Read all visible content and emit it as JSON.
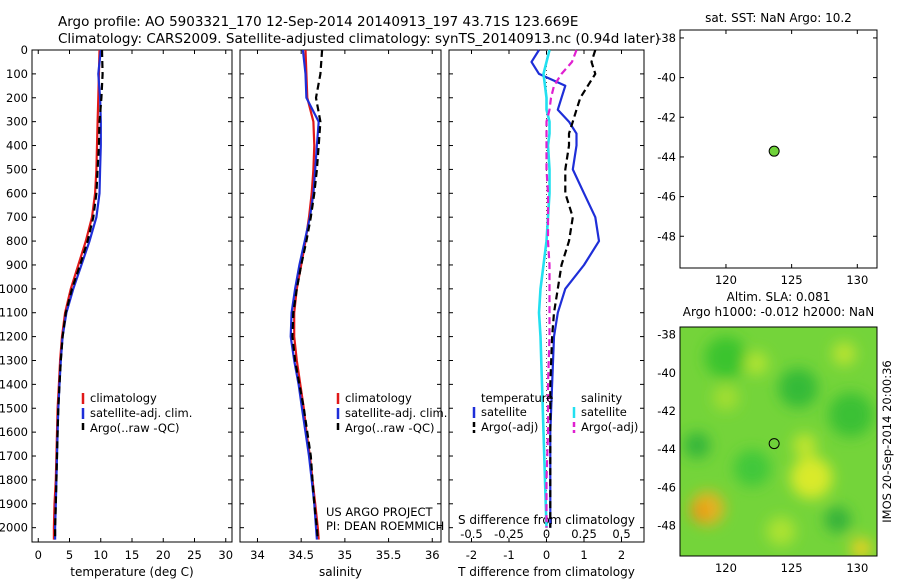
{
  "header": {
    "line1": "Argo profile: AO 5903321_170 12-Sep-2014 20140913_197 43.71S 123.669E",
    "line2": "Climatology: CARS2009. Satellite-adjusted climatology: synTS_20140913.nc (0.94d later)"
  },
  "colors": {
    "climatology": "#e01818",
    "satellite": "#1e2ed8",
    "argo": "#000000",
    "salinity_satellite": "#22e0f0",
    "salinity_argo": "#e020d0",
    "marker": "#6fd23a"
  },
  "chart_data": [
    {
      "type": "line",
      "name": "temperature-profile",
      "xlabel": "temperature (deg C)",
      "xlim": [
        -1,
        31
      ],
      "xticks": [
        "0",
        "5",
        "10",
        "15",
        "20",
        "25",
        "30"
      ],
      "ylim": [
        2060,
        0
      ],
      "yticks": [
        "0",
        "100",
        "200",
        "300",
        "400",
        "500",
        "600",
        "700",
        "800",
        "900",
        "1000",
        "1100",
        "1200",
        "1300",
        "1400",
        "1500",
        "1600",
        "1700",
        "1800",
        "1900",
        "2000"
      ],
      "legend": [
        "climatology",
        "satellite-adj. clim.",
        "Argo(..raw -QC)"
      ],
      "legend_position": "lower-middle",
      "depth": [
        0,
        100,
        200,
        300,
        400,
        500,
        600,
        700,
        800,
        900,
        1000,
        1100,
        1200,
        1300,
        1400,
        1500,
        1600,
        1700,
        1800,
        1900,
        2000,
        2050
      ],
      "series": [
        {
          "name": "climatology",
          "values": [
            9.8,
            9.7,
            9.6,
            9.5,
            9.4,
            9.3,
            9.1,
            8.6,
            7.6,
            6.4,
            5.2,
            4.3,
            3.8,
            3.5,
            3.3,
            3.1,
            3.0,
            2.9,
            2.8,
            2.6,
            2.5,
            2.5
          ]
        },
        {
          "name": "satellite-adj. clim.",
          "values": [
            10.0,
            9.6,
            9.9,
            10.0,
            10.0,
            9.9,
            9.8,
            9.3,
            8.2,
            6.9,
            5.6,
            4.5,
            3.9,
            3.6,
            3.4,
            3.2,
            3.1,
            3.0,
            2.9,
            2.8,
            2.7,
            2.7
          ]
        },
        {
          "name": "Argo(..raw -QC)",
          "values": [
            10.2,
            10.3,
            10.1,
            9.8,
            9.7,
            9.5,
            9.3,
            8.8,
            7.9,
            6.7,
            5.4,
            4.4,
            3.9,
            3.6,
            3.4,
            3.2,
            3.1,
            3.0,
            2.9,
            2.8,
            2.7,
            2.7
          ]
        }
      ]
    },
    {
      "type": "line",
      "name": "salinity-profile",
      "xlabel": "salinity",
      "xlim": [
        33.8,
        36.1
      ],
      "xticks": [
        "34",
        "34.5",
        "35",
        "35.5",
        "36"
      ],
      "legend": [
        "climatology",
        "satellite-adj. clim.",
        "Argo(..raw -QC)"
      ],
      "legend_position": "lower-right",
      "annotation": [
        "US ARGO PROJECT",
        "PI: DEAN ROEMMICH"
      ],
      "depth": [
        0,
        100,
        200,
        300,
        400,
        500,
        600,
        700,
        800,
        900,
        1000,
        1100,
        1200,
        1300,
        1400,
        1500,
        1600,
        1700,
        1800,
        1900,
        2000,
        2050
      ],
      "series": [
        {
          "name": "climatology",
          "values": [
            34.55,
            34.56,
            34.57,
            34.64,
            34.65,
            34.64,
            34.62,
            34.59,
            34.55,
            34.5,
            34.45,
            34.42,
            34.42,
            34.45,
            34.49,
            34.53,
            34.56,
            34.6,
            34.63,
            34.66,
            34.69,
            34.7
          ]
        },
        {
          "name": "satellite-adj. clim.",
          "values": [
            34.52,
            34.55,
            34.56,
            34.7,
            34.68,
            34.66,
            34.64,
            34.6,
            34.54,
            34.48,
            34.43,
            34.39,
            34.38,
            34.42,
            34.47,
            34.51,
            34.55,
            34.59,
            34.62,
            34.65,
            34.67,
            34.68
          ]
        },
        {
          "name": "Argo(..raw -QC)",
          "values": [
            34.74,
            34.72,
            34.67,
            34.72,
            34.7,
            34.68,
            34.65,
            34.61,
            34.56,
            34.5,
            34.45,
            34.41,
            34.4,
            34.43,
            34.48,
            34.53,
            34.57,
            34.61,
            34.63,
            34.65,
            34.68,
            34.69
          ]
        }
      ]
    },
    {
      "type": "line",
      "name": "difference-profile",
      "xlabel": "T difference from climatology",
      "top_axis_label": "S difference from climatology",
      "xlim": [
        -2.6,
        2.6
      ],
      "xticks": [
        "-2",
        "-1",
        "0",
        "1",
        "2"
      ],
      "top_ticks": [
        "-0.5",
        "-0.25",
        "0",
        "0.25",
        "0.5"
      ],
      "legend_titles": [
        "temperature",
        "salinity"
      ],
      "legend": [
        "satellite",
        "Argo(-adj)",
        "satellite",
        "Argo(-adj)"
      ],
      "legend_position": "lower-middle",
      "depth": [
        0,
        50,
        100,
        150,
        200,
        250,
        300,
        350,
        400,
        500,
        600,
        700,
        800,
        900,
        1000,
        1100,
        1200,
        1400,
        1600,
        1800,
        2000
      ],
      "series": [
        {
          "name": "temperature satellite",
          "values": [
            -0.2,
            -0.4,
            -0.2,
            0.5,
            0.4,
            0.3,
            0.6,
            0.8,
            0.8,
            0.7,
            1.0,
            1.3,
            1.4,
            1.0,
            0.5,
            0.3,
            0.2,
            0.15,
            0.1,
            0.1,
            0.1
          ]
        },
        {
          "name": "temperature Argo(-adj)",
          "values": [
            1.3,
            1.2,
            1.3,
            1.1,
            0.9,
            0.8,
            0.7,
            0.6,
            0.6,
            0.5,
            0.5,
            0.7,
            0.6,
            0.4,
            0.3,
            0.2,
            0.15,
            0.1,
            0.1,
            0.1,
            0.1
          ]
        },
        {
          "name": "salinity satellite",
          "values": [
            0.02,
            0.0,
            -0.02,
            -0.01,
            0.0,
            0.0,
            0.02,
            0.02,
            0.01,
            0.02,
            0.02,
            0.01,
            0.0,
            -0.02,
            -0.04,
            -0.05,
            -0.04,
            -0.03,
            -0.02,
            -0.01,
            0.0
          ]
        },
        {
          "name": "salinity Argo(-adj)",
          "values": [
            0.2,
            0.17,
            0.1,
            0.05,
            0.03,
            0.02,
            0.0,
            0.0,
            0.0,
            0.0,
            0.01,
            0.01,
            0.01,
            0.02,
            0.02,
            0.02,
            0.02,
            0.01,
            0.01,
            0.0,
            0.0
          ]
        }
      ]
    },
    {
      "type": "scatter",
      "name": "sst-map",
      "title": "sat. SST: NaN Argo: 10.2",
      "xlim": [
        116.5,
        131.5
      ],
      "ylim": [
        -49.6,
        -37.6
      ],
      "xticks": [
        "120",
        "125",
        "130"
      ],
      "yticks": [
        "-38",
        "-40",
        "-42",
        "-44",
        "-46",
        "-48"
      ],
      "points": [
        {
          "x": 123.669,
          "y": -43.71
        }
      ]
    },
    {
      "type": "heatmap",
      "name": "sla-map",
      "title": [
        "Altim. SLA: 0.081",
        "Argo h1000: -0.012 h2000: NaN"
      ],
      "xlim": [
        116.5,
        131.5
      ],
      "ylim": [
        -49.6,
        -37.6
      ],
      "xticks": [
        "120",
        "125",
        "130"
      ],
      "yticks": [
        "-38",
        "-40",
        "-42",
        "-44",
        "-46",
        "-48"
      ],
      "side_label": "IMOS 20-Sep-2014 20:00:36",
      "points": [
        {
          "x": 123.669,
          "y": -43.71
        }
      ],
      "blobs": [
        {
          "x": 120.0,
          "y": -39.2,
          "r": 1.6,
          "c": "#33c22e"
        },
        {
          "x": 125.5,
          "y": -40.8,
          "r": 1.5,
          "c": "#2eb839"
        },
        {
          "x": 129.5,
          "y": -42.2,
          "r": 1.7,
          "c": "#35bf35"
        },
        {
          "x": 122.0,
          "y": -45.0,
          "r": 1.4,
          "c": "#3ac63b"
        },
        {
          "x": 118.6,
          "y": -47.1,
          "r": 1.3,
          "c": "#f0b020"
        },
        {
          "x": 118.0,
          "y": -47.3,
          "r": 0.7,
          "c": "#ee9418"
        },
        {
          "x": 126.5,
          "y": -45.5,
          "r": 1.6,
          "c": "#e4ec28"
        },
        {
          "x": 126.0,
          "y": -43.8,
          "r": 0.9,
          "c": "#c9e72c"
        },
        {
          "x": 120.0,
          "y": -41.3,
          "r": 1.0,
          "c": "#a6df30"
        },
        {
          "x": 122.3,
          "y": -39.5,
          "r": 0.9,
          "c": "#b8e632"
        },
        {
          "x": 129.0,
          "y": -39.0,
          "r": 0.9,
          "c": "#c2e630"
        },
        {
          "x": 130.3,
          "y": -49.2,
          "r": 0.8,
          "c": "#f5d020"
        },
        {
          "x": 124.2,
          "y": -48.3,
          "r": 1.1,
          "c": "#b2e431"
        },
        {
          "x": 128.5,
          "y": -47.7,
          "r": 1.0,
          "c": "#2cae3c"
        },
        {
          "x": 117.8,
          "y": -43.8,
          "r": 1.0,
          "c": "#2db23a"
        }
      ]
    }
  ]
}
